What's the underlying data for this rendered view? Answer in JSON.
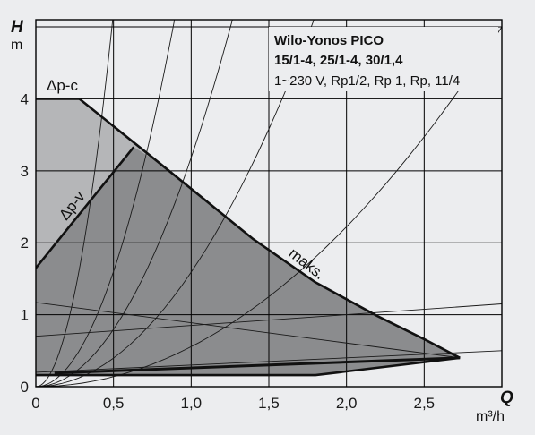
{
  "chart_data": {
    "type": "area",
    "title_lines": [
      "Wilo-Yonos PICO",
      "15/1-4, 25/1-4, 30/1,4",
      "1~230 V, Rp1/2, Rp 1, Rp, 11/4"
    ],
    "ylabel": {
      "symbol": "H",
      "unit": "m"
    },
    "xlabel": {
      "symbol": "Q",
      "unit": "m³/h"
    },
    "xlim": [
      0,
      3.0
    ],
    "ylim": [
      0,
      5.1
    ],
    "x_ticks": [
      {
        "value": 0,
        "label": "0"
      },
      {
        "value": 0.5,
        "label": "0,5"
      },
      {
        "value": 1.0,
        "label": "1,0"
      },
      {
        "value": 1.5,
        "label": "1,5"
      },
      {
        "value": 2.0,
        "label": "2,0"
      },
      {
        "value": 2.5,
        "label": "2,5"
      }
    ],
    "y_ticks": [
      {
        "value": 0,
        "label": "0"
      },
      {
        "value": 1,
        "label": "1"
      },
      {
        "value": 2,
        "label": "2"
      },
      {
        "value": 3,
        "label": "3"
      },
      {
        "value": 4,
        "label": "4"
      }
    ],
    "grid": true,
    "series": [
      {
        "name": "Δp-c",
        "x": [
          0,
          0.28
        ],
        "y": [
          4.0,
          4.0
        ]
      },
      {
        "name": "maks.",
        "x": [
          0.28,
          0.8,
          1.4,
          1.8,
          2.2,
          2.5,
          2.73
        ],
        "y": [
          4.0,
          3.1,
          2.05,
          1.45,
          0.98,
          0.66,
          0.4
        ]
      },
      {
        "name": "Δp-v",
        "x": [
          0,
          0.63
        ],
        "y": [
          1.65,
          3.33
        ]
      },
      {
        "name": "",
        "x": [
          0,
          1.8,
          2.73
        ],
        "y": [
          0.16,
          0.16,
          0.4
        ]
      },
      {
        "name": "",
        "x": [
          0.12,
          2.73
        ],
        "y": [
          0.19,
          0.4
        ]
      }
    ],
    "regions": [
      {
        "name": "",
        "x": [
          0,
          0.28,
          0.8,
          1.4,
          1.8,
          2.2,
          2.5,
          2.73,
          1.8,
          0
        ],
        "y": [
          4.0,
          4.0,
          3.1,
          2.05,
          1.45,
          0.98,
          0.66,
          0.4,
          0.16,
          0.16
        ],
        "color": "#b5b6b8"
      },
      {
        "name": "",
        "x": [
          0,
          0.63,
          0.8,
          1.4,
          1.8,
          2.2,
          2.5,
          2.73,
          1.8,
          0
        ],
        "y": [
          1.65,
          3.33,
          3.1,
          2.05,
          1.45,
          0.98,
          0.66,
          0.4,
          0.16,
          0.16
        ],
        "color": "#8b8c8e"
      }
    ],
    "system_curves": [
      {
        "x": [
          0,
          0.5,
          1.0,
          1.5,
          2.0,
          2.5,
          3.0
        ],
        "y": [
          0.0,
          0.14,
          0.56,
          1.26,
          2.24,
          3.5,
          5.0
        ]
      },
      {
        "x": [
          0,
          0.5,
          1.0,
          1.5,
          2.0,
          2.2
        ],
        "y": [
          0.0,
          0.4,
          1.6,
          3.6,
          6.4,
          7.7
        ]
      },
      {
        "x": [
          0,
          0.5,
          1.0,
          1.5,
          1.7
        ],
        "y": [
          0.0,
          0.8,
          3.2,
          7.2,
          9.2
        ]
      },
      {
        "x": [
          0,
          0.25,
          0.5,
          0.75,
          1.0
        ],
        "y": [
          0.0,
          0.4,
          1.6,
          3.6,
          6.4
        ]
      },
      {
        "x": [
          0,
          0.25,
          0.5,
          0.6
        ],
        "y": [
          0.0,
          1.3,
          5.2,
          7.5
        ]
      }
    ],
    "speed_lines": [
      {
        "x": [
          0,
          2.73
        ],
        "y": [
          1.17,
          0.4
        ]
      },
      {
        "x": [
          0,
          3.0
        ],
        "y": [
          0.7,
          1.15
        ]
      },
      {
        "x": [
          0,
          3.0
        ],
        "y": [
          0.2,
          0.5
        ]
      }
    ],
    "colors": {
      "background": "#ecedef",
      "grid": "#000000",
      "region_outer": "#b5b6b8",
      "region_inner": "#8b8c8e",
      "thin_lines": "#1a1a1a"
    }
  }
}
